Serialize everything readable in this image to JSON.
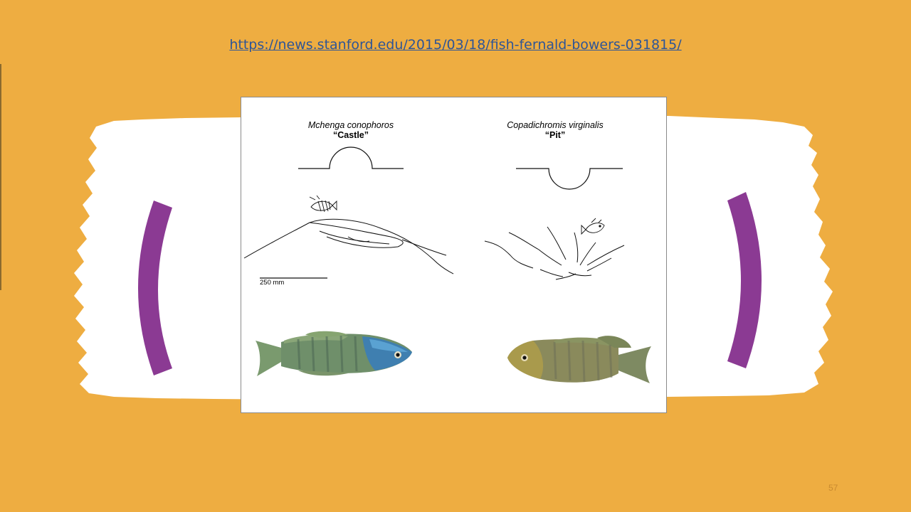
{
  "slide": {
    "source_url": "https://news.stanford.edu/2015/03/18/fish-fernald-bowers-031815/",
    "page_number": "57",
    "colors": {
      "background": "#EEAD41",
      "bracket": "#8B3A93",
      "link": "#2E5597",
      "brush": "#FFFFFF"
    }
  },
  "figure": {
    "left_species": {
      "latin_name": "Mchenga conophoros",
      "common_name": "“Castle”"
    },
    "right_species": {
      "latin_name": "Copadichromis virginalis",
      "common_name": "“Pit”"
    },
    "scale_bar_label": "250 mm"
  }
}
